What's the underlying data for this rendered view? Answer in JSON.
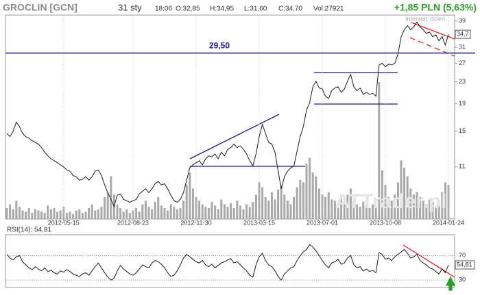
{
  "chart_data": [
    {
      "type": "line",
      "log": true,
      "grid": true,
      "color": "#1a1a1a",
      "header": {
        "symbol": "GROCLIN [GCN]",
        "date": "31 sty",
        "time": "18:06",
        "open": "O:32,85",
        "high": "H:34,95",
        "low": "L:31,60",
        "close": "C:34,70",
        "volume": "Vol:27921",
        "change": "+1,85 PLN (5,63%)",
        "change_color": "#2a9d2a"
      },
      "interval_note": "Interwał: dzień",
      "watermark": "ATTrader.pl",
      "hline": {
        "value": 29.5,
        "label": "29,50",
        "color": "#1a1a8c"
      },
      "last_value_label": {
        "value": 34.7,
        "label": "34,7"
      },
      "ylim": [
        7,
        41
      ],
      "yticks": [
        39,
        35,
        31,
        27,
        23,
        19,
        15,
        11
      ],
      "categories": [
        null,
        null,
        null,
        null,
        null,
        null,
        null,
        null,
        null,
        null,
        null,
        null,
        null,
        null,
        null,
        null,
        null,
        null,
        "2012-05-15",
        null,
        null,
        null,
        null,
        null,
        null,
        null,
        null,
        null,
        null,
        null,
        null,
        null,
        null,
        null,
        null,
        null,
        null,
        null,
        null,
        null,
        "2012-08-23",
        null,
        null,
        null,
        null,
        null,
        null,
        null,
        null,
        null,
        null,
        null,
        null,
        null,
        null,
        null,
        null,
        null,
        null,
        null,
        "2012-11-30",
        null,
        null,
        null,
        null,
        null,
        null,
        null,
        null,
        null,
        null,
        null,
        null,
        null,
        null,
        null,
        null,
        null,
        null,
        null,
        "2013-03-15",
        null,
        null,
        null,
        null,
        null,
        null,
        null,
        null,
        null,
        null,
        null,
        null,
        null,
        null,
        null,
        null,
        null,
        null,
        null,
        "2013-07-01",
        null,
        null,
        null,
        null,
        null,
        null,
        null,
        null,
        null,
        null,
        null,
        null,
        null,
        null,
        null,
        null,
        null,
        null,
        null,
        "2013-10-08",
        null,
        null,
        null,
        null,
        null,
        null,
        null,
        null,
        null,
        null,
        null,
        null,
        null,
        null,
        null,
        null,
        null,
        null,
        null,
        "2014-01-24"
      ],
      "values": [
        14.7,
        14.3,
        15.0,
        16.2,
        15.6,
        14.7,
        14.3,
        14.1,
        13.8,
        13.6,
        13.4,
        13.0,
        12.5,
        12.1,
        11.8,
        11.6,
        11.4,
        11.2,
        11.0,
        10.7,
        10.6,
        10.2,
        10.1,
        9.8,
        9.9,
        10.1,
        9.8,
        10.1,
        10.6,
        10.7,
        10.2,
        9.4,
        8.8,
        8.3,
        7.8,
        8.6,
        8.7,
        8.3,
        8.2,
        8.1,
        8.2,
        8.3,
        8.7,
        8.9,
        9.1,
        8.8,
        9.1,
        9.5,
        9.7,
        9.4,
        9.5,
        9.1,
        8.6,
        8.2,
        8.1,
        8.3,
        8.8,
        9.8,
        10.9,
        11.2,
        11.4,
        11.6,
        11.2,
        11.8,
        12.1,
        12.0,
        12.3,
        11.8,
        12.5,
        12.1,
        12.8,
        13.0,
        13.4,
        13.0,
        13.2,
        12.8,
        12.3,
        11.6,
        11.1,
        12.3,
        14.3,
        15.9,
        14.7,
        13.6,
        13.4,
        12.5,
        10.6,
        9.1,
        10.1,
        10.6,
        10.9,
        11.1,
        12.6,
        14.3,
        15.6,
        18.0,
        19.2,
        22.0,
        23.1,
        21.8,
        21.6,
        20.3,
        19.9,
        21.3,
        21.8,
        22.0,
        21.0,
        21.6,
        23.1,
        24.5,
        22.0,
        21.3,
        21.8,
        20.6,
        21.0,
        20.6,
        20.8,
        20.3,
        26.6,
        27.0,
        26.2,
        26.8,
        26.6,
        27.0,
        29.2,
        34.0,
        36.1,
        37.4,
        36.1,
        37.0,
        38.6,
        37.0,
        36.1,
        35.0,
        35.4,
        34.0,
        34.5,
        32.8,
        34.0,
        31.6,
        34.7
      ]
    },
    {
      "type": "bar",
      "color": "#a8a8a8",
      "values": [
        9000,
        12000,
        8000,
        15000,
        10000,
        7000,
        6000,
        9000,
        5000,
        8000,
        7000,
        6000,
        5000,
        11000,
        8000,
        9000,
        6000,
        7000,
        10000,
        5000,
        6000,
        4000,
        7000,
        8000,
        5000,
        6000,
        9000,
        12000,
        7000,
        8000,
        10000,
        18000,
        22000,
        35000,
        20000,
        12000,
        9000,
        6000,
        8000,
        5000,
        7000,
        9000,
        6000,
        12000,
        15000,
        10000,
        8000,
        14000,
        18000,
        11000,
        9000,
        7000,
        12000,
        10000,
        8000,
        9000,
        15000,
        28000,
        38000,
        25000,
        18000,
        15000,
        12000,
        10000,
        9000,
        14000,
        11000,
        8000,
        16000,
        12000,
        10000,
        13000,
        9000,
        15000,
        11000,
        8000,
        12000,
        10000,
        14000,
        20000,
        30000,
        26000,
        18000,
        15000,
        22000,
        16000,
        24000,
        28000,
        20000,
        15000,
        12000,
        18000,
        26000,
        32000,
        30000,
        45000,
        50000,
        38000,
        35000,
        25000,
        20000,
        18000,
        22000,
        16000,
        15000,
        12000,
        18000,
        14000,
        20000,
        25000,
        15000,
        12000,
        10000,
        14000,
        11000,
        9000,
        12000,
        10000,
        112000,
        40000,
        28000,
        18000,
        15000,
        20000,
        30000,
        48000,
        42000,
        35000,
        25000,
        20000,
        22000,
        18000,
        15000,
        12000,
        16000,
        14000,
        10000,
        12000,
        22000,
        30000,
        27921
      ]
    },
    {
      "type": "line",
      "title": "RSI(14): 54,81",
      "color": "#1a1a1a",
      "grid": true,
      "last_value_label": {
        "value": 54.81,
        "label": "54,81"
      },
      "ylim": [
        18,
        104
      ],
      "yticks": [
        70,
        30
      ],
      "values": [
        72,
        66,
        63,
        68,
        70,
        60,
        55,
        50,
        47,
        52,
        48,
        45,
        50,
        44,
        46,
        42,
        40,
        45,
        43,
        47,
        44,
        40,
        38,
        36,
        40,
        42,
        38,
        45,
        52,
        58,
        50,
        42,
        35,
        30,
        33,
        45,
        54,
        48,
        44,
        40,
        38,
        42,
        48,
        55,
        52,
        50,
        58,
        62,
        60,
        56,
        50,
        42,
        36,
        38,
        45,
        55,
        66,
        72,
        68,
        64,
        60,
        58,
        62,
        55,
        52,
        56,
        50,
        54,
        58,
        60,
        63,
        65,
        58,
        60,
        55,
        50,
        45,
        38,
        35,
        55,
        68,
        74,
        62,
        55,
        52,
        45,
        36,
        30,
        40,
        45,
        50,
        52,
        62,
        70,
        76,
        80,
        88,
        84,
        78,
        70,
        62,
        55,
        50,
        58,
        60,
        64,
        56,
        58,
        66,
        70,
        55,
        50,
        52,
        45,
        48,
        44,
        46,
        42,
        75,
        72,
        64,
        66,
        62,
        68,
        72,
        76,
        80,
        74,
        66,
        68,
        72,
        62,
        58,
        55,
        50,
        48,
        44,
        40,
        48,
        42,
        54.81
      ]
    }
  ]
}
